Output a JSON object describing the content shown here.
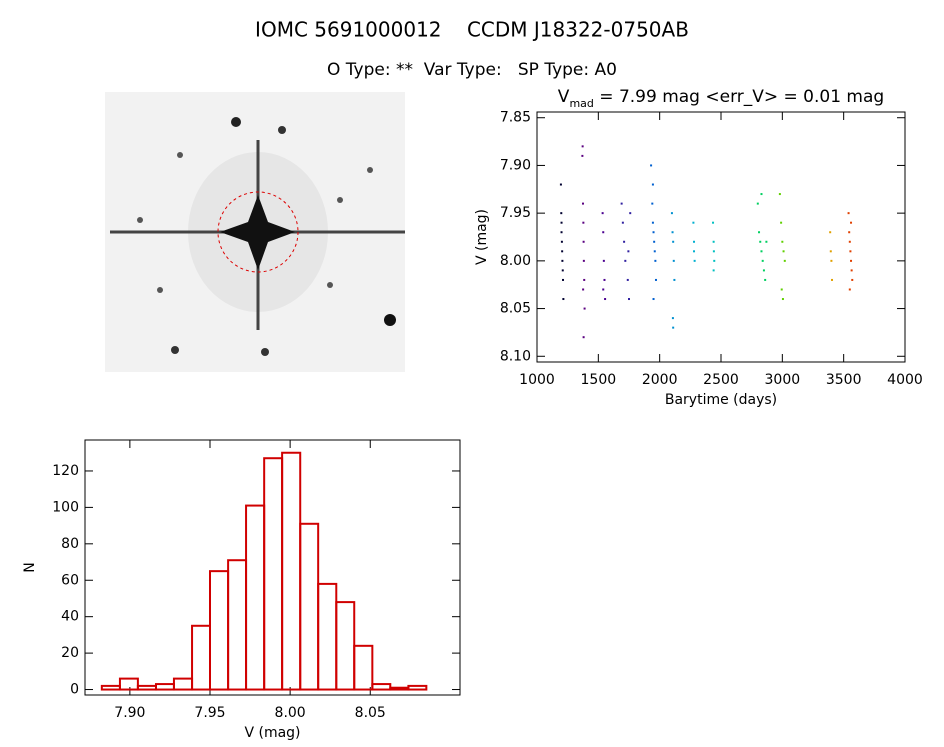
{
  "header": {
    "title": "IOMC 5691000012    CCDM J18322-0750AB",
    "subtitle": "O Type: **  Var Type:   SP Type: A0"
  },
  "chart_data": [
    {
      "type": "scatter",
      "title_parts": [
        "V",
        "mad",
        " = 7.99 mag <err_V> = 0.01 mag"
      ],
      "xlabel": "Barytime (days)",
      "ylabel": "V (mag)",
      "xlim": [
        1000,
        4000
      ],
      "ylim": [
        8.106,
        7.844
      ],
      "xticks": [
        1000,
        1500,
        2000,
        2500,
        3000,
        3500,
        4000
      ],
      "yticks": [
        7.85,
        {
          "value": 7.9,
          "label": "7.90"
        },
        7.95,
        {
          "value": 8,
          "label": "8.00"
        },
        8.05,
        {
          "value": 8.1,
          "label": "8.10"
        }
      ],
      "series": [
        {
          "color": "#000030",
          "x": [
            1195,
            1198,
            1200,
            1203,
            1205,
            1207,
            1210,
            1212,
            1215,
            1200
          ],
          "values": [
            7.92,
            7.95,
            7.97,
            7.98,
            7.99,
            8.0,
            8.01,
            8.02,
            8.04,
            7.96
          ]
        },
        {
          "color": "#5a0080",
          "x": [
            1370,
            1372,
            1375,
            1378,
            1380,
            1382,
            1385,
            1388,
            1380,
            1376
          ],
          "values": [
            7.89,
            7.88,
            7.94,
            7.96,
            7.98,
            8.0,
            8.02,
            8.05,
            8.08,
            8.03
          ]
        },
        {
          "color": "#4b0090",
          "x": [
            1535,
            1540,
            1545,
            1550,
            1555,
            1540
          ],
          "values": [
            7.95,
            7.97,
            8.0,
            8.02,
            8.04,
            8.03
          ]
        },
        {
          "color": "#3020a0",
          "x": [
            1690,
            1700,
            1710,
            1720,
            1740,
            1750,
            1760,
            1745
          ],
          "values": [
            7.94,
            7.96,
            7.98,
            8.0,
            8.02,
            8.04,
            7.95,
            7.99
          ]
        },
        {
          "color": "#0060d0",
          "x": [
            1930,
            1940,
            1945,
            1950,
            1955,
            1960,
            1965,
            1970,
            1950,
            1945
          ],
          "values": [
            7.9,
            7.94,
            7.96,
            7.97,
            7.98,
            7.99,
            8.0,
            8.02,
            8.04,
            7.92
          ]
        },
        {
          "color": "#0090d0",
          "x": [
            2100,
            2105,
            2110,
            2115,
            2120,
            2110,
            2108
          ],
          "values": [
            7.95,
            7.97,
            7.98,
            8.0,
            8.02,
            8.07,
            8.06
          ]
        },
        {
          "color": "#00b0d0",
          "x": [
            2275,
            2280,
            2285,
            2280
          ],
          "values": [
            7.96,
            7.98,
            8.0,
            7.99
          ]
        },
        {
          "color": "#00c0c0",
          "x": [
            2435,
            2440,
            2445,
            2440,
            2442
          ],
          "values": [
            7.96,
            7.98,
            8.0,
            8.01,
            7.99
          ]
        },
        {
          "color": "#00d060",
          "x": [
            2800,
            2810,
            2820,
            2830,
            2840,
            2850,
            2860,
            2870,
            2830
          ],
          "values": [
            7.94,
            7.97,
            7.98,
            7.99,
            8.0,
            8.01,
            8.02,
            7.98,
            7.93
          ]
        },
        {
          "color": "#60d000",
          "x": [
            2980,
            2990,
            3000,
            3010,
            3020,
            2995,
            3005
          ],
          "values": [
            7.93,
            7.96,
            7.98,
            7.99,
            8.0,
            8.03,
            8.04
          ]
        },
        {
          "color": "#e0a000",
          "x": [
            3390,
            3395,
            3400,
            3405
          ],
          "values": [
            7.97,
            7.99,
            8.0,
            8.02
          ]
        },
        {
          "color": "#e04000",
          "x": [
            3540,
            3545,
            3550,
            3555,
            3560,
            3565,
            3570,
            3550,
            3560
          ],
          "values": [
            7.95,
            7.97,
            7.98,
            7.99,
            8.0,
            8.01,
            8.02,
            8.03,
            7.96
          ]
        }
      ]
    },
    {
      "type": "histogram",
      "xlabel": "V (mag)",
      "ylabel": "N",
      "color": "#d00000",
      "bins": [
        7.8825,
        7.8938,
        7.905,
        7.9163,
        7.9275,
        7.9388,
        7.95,
        7.9613,
        7.9725,
        7.9838,
        7.995,
        8.0063,
        8.0175,
        8.0288,
        8.04,
        8.0513,
        8.0625,
        8.0738,
        8.085
      ],
      "values": [
        2,
        6,
        2,
        3,
        6,
        35,
        65,
        71,
        101,
        127,
        130,
        91,
        58,
        48,
        24,
        3,
        1,
        2
      ],
      "xlim": [
        7.872,
        8.106
      ],
      "ylim": [
        -3,
        137
      ],
      "xticks": [
        {
          "value": 7.9,
          "label": "7.90"
        },
        7.95,
        {
          "value": 8,
          "label": "8.00"
        },
        8.05
      ],
      "yticks": [
        0,
        20,
        40,
        60,
        80,
        100,
        120
      ]
    }
  ]
}
